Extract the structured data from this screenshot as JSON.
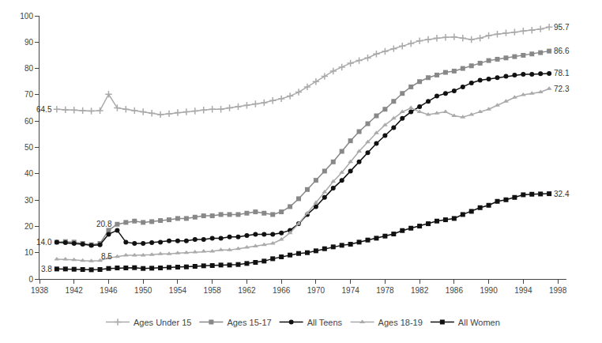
{
  "chart_data": {
    "type": "line",
    "x": [
      1940,
      1941,
      1942,
      1943,
      1944,
      1945,
      1946,
      1947,
      1948,
      1949,
      1950,
      1951,
      1952,
      1953,
      1954,
      1955,
      1956,
      1957,
      1958,
      1959,
      1960,
      1961,
      1962,
      1963,
      1964,
      1965,
      1966,
      1967,
      1968,
      1969,
      1970,
      1971,
      1972,
      1973,
      1974,
      1975,
      1976,
      1977,
      1978,
      1979,
      1980,
      1981,
      1982,
      1983,
      1984,
      1985,
      1986,
      1987,
      1988,
      1989,
      1990,
      1991,
      1992,
      1993,
      1994,
      1995,
      1996,
      1997
    ],
    "series": [
      {
        "name": "Ages Under 15",
        "color": "#aaaaaa",
        "marker": "plus",
        "values": [
          64.5,
          64.3,
          64.2,
          64.0,
          63.8,
          64.0,
          70.2,
          65.0,
          64.5,
          64.0,
          63.5,
          63.0,
          62.5,
          62.8,
          63.2,
          63.5,
          63.8,
          64.2,
          64.5,
          64.5,
          65.0,
          65.5,
          66.0,
          66.5,
          67.0,
          67.8,
          68.5,
          69.5,
          71.0,
          73.0,
          75.0,
          77.0,
          79.0,
          80.5,
          82.0,
          83.0,
          84.0,
          85.5,
          86.5,
          87.5,
          88.5,
          89.5,
          90.5,
          91.0,
          91.5,
          91.8,
          92.0,
          91.5,
          91.0,
          91.5,
          92.5,
          93.0,
          93.5,
          93.8,
          94.2,
          94.5,
          95.0,
          95.7
        ]
      },
      {
        "name": "Ages 15-17",
        "color": "#888888",
        "marker": "square",
        "values": [
          14.0,
          14.2,
          14.0,
          13.5,
          13.0,
          13.5,
          18.5,
          20.8,
          21.5,
          22.0,
          21.5,
          21.8,
          22.2,
          22.5,
          23.0,
          23.0,
          23.5,
          24.0,
          24.0,
          24.5,
          24.5,
          24.5,
          25.0,
          25.5,
          25.0,
          24.5,
          25.5,
          27.5,
          30.5,
          34.0,
          37.5,
          41.0,
          44.5,
          48.5,
          52.5,
          56.0,
          59.0,
          62.0,
          64.5,
          67.5,
          70.5,
          73.0,
          75.0,
          76.5,
          77.5,
          78.5,
          79.0,
          80.0,
          81.0,
          82.0,
          83.0,
          83.5,
          84.0,
          84.5,
          85.0,
          85.5,
          86.0,
          86.6
        ]
      },
      {
        "name": "All Teens",
        "color": "#111111",
        "marker": "circle",
        "values": [
          14.0,
          13.8,
          13.5,
          13.2,
          12.8,
          13.0,
          17.0,
          18.5,
          14.0,
          13.5,
          13.5,
          13.8,
          14.0,
          14.5,
          14.5,
          14.5,
          15.0,
          15.0,
          15.5,
          15.5,
          16.0,
          16.0,
          16.5,
          17.0,
          17.0,
          17.0,
          17.5,
          18.5,
          21.0,
          24.5,
          27.5,
          31.0,
          34.5,
          37.5,
          41.0,
          44.5,
          48.0,
          51.5,
          54.5,
          57.5,
          61.0,
          63.5,
          65.5,
          67.5,
          69.5,
          70.5,
          71.5,
          73.0,
          74.5,
          75.5,
          76.0,
          76.5,
          77.0,
          77.5,
          77.8,
          77.8,
          78.0,
          78.1
        ]
      },
      {
        "name": "Ages 18-19",
        "color": "#aaaaaa",
        "marker": "triangle-up",
        "values": [
          7.5,
          7.5,
          7.3,
          7.0,
          6.8,
          7.0,
          8.0,
          8.5,
          9.0,
          9.0,
          9.0,
          9.2,
          9.5,
          9.5,
          9.8,
          10.0,
          10.2,
          10.5,
          10.5,
          11.0,
          11.0,
          11.5,
          12.0,
          12.5,
          13.0,
          13.5,
          15.0,
          17.5,
          21.0,
          25.0,
          29.0,
          33.0,
          37.0,
          40.5,
          44.5,
          48.5,
          52.0,
          55.5,
          58.5,
          61.0,
          63.5,
          65.0,
          63.5,
          62.5,
          63.0,
          63.5,
          62.0,
          61.5,
          62.5,
          63.5,
          64.5,
          66.0,
          67.5,
          69.0,
          70.0,
          70.5,
          71.0,
          72.3
        ]
      },
      {
        "name": "All Women",
        "color": "#111111",
        "marker": "square",
        "values": [
          3.8,
          3.8,
          3.7,
          3.6,
          3.5,
          3.6,
          4.0,
          4.2,
          4.2,
          4.3,
          4.0,
          4.1,
          4.2,
          4.4,
          4.5,
          4.6,
          4.8,
          5.0,
          5.1,
          5.3,
          5.3,
          5.5,
          5.9,
          6.3,
          6.8,
          7.7,
          8.4,
          9.1,
          9.7,
          10.0,
          10.7,
          11.5,
          12.2,
          12.8,
          13.2,
          14.0,
          14.8,
          15.5,
          16.3,
          17.1,
          18.4,
          19.3,
          20.1,
          21.0,
          22.0,
          22.5,
          23.0,
          24.5,
          25.7,
          27.1,
          28.0,
          29.5,
          30.1,
          31.0,
          32.0,
          32.2,
          32.3,
          32.4
        ]
      }
    ],
    "annotations": [
      {
        "text": "95.7",
        "x": 1997,
        "y": 95.7
      },
      {
        "text": "86.6",
        "x": 1997,
        "y": 86.6
      },
      {
        "text": "78.1",
        "x": 1997,
        "y": 78.1
      },
      {
        "text": "72.3",
        "x": 1997,
        "y": 72.3
      },
      {
        "text": "32.4",
        "x": 1997,
        "y": 32.4
      },
      {
        "text": "64.5",
        "x": 1940,
        "y": 64.5
      },
      {
        "text": "20.8",
        "x": 1947,
        "y": 20.8
      },
      {
        "text": "14.0",
        "x": 1940,
        "y": 14.0
      },
      {
        "text": "8.5",
        "x": 1947,
        "y": 8.5
      },
      {
        "text": "3.8",
        "x": 1940,
        "y": 3.8
      }
    ],
    "xlim": [
      1938,
      1999
    ],
    "ylim": [
      0,
      100
    ],
    "xticks": [
      1938,
      1942,
      1946,
      1950,
      1954,
      1958,
      1962,
      1966,
      1970,
      1974,
      1978,
      1982,
      1986,
      1990,
      1994,
      1998
    ],
    "yticks": [
      0,
      10,
      20,
      30,
      40,
      50,
      60,
      70,
      80,
      90,
      100
    ],
    "grid": false,
    "legend": "bottom"
  }
}
